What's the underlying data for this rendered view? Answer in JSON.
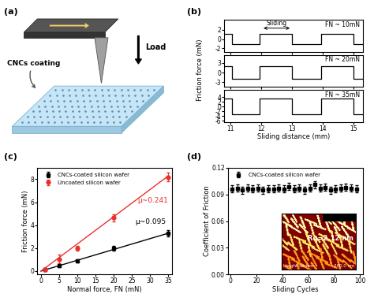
{
  "chart_data": [
    {
      "type": "diagram",
      "panel_label": "(a)",
      "load_label": "Load",
      "coating_label": "CNCs coating"
    },
    {
      "type": "line",
      "panel_label": "(b)",
      "x_label": "Sliding distance (mm)",
      "y_label": "Friction force (mN)",
      "sliding_label": "Sliding",
      "sliding_range": [
        12,
        13
      ],
      "x": [
        10.8,
        11.05,
        11.05,
        11.95,
        11.95,
        13.0,
        13.0,
        13.95,
        13.95,
        15.0,
        15.0,
        15.3
      ],
      "xlim": [
        10.8,
        15.3
      ],
      "xticks": [
        11,
        12,
        13,
        14,
        15
      ],
      "subplots": [
        {
          "annotation": "FN ~ 10mN",
          "ylim": [
            -2.8,
            4.2
          ],
          "yticks": [
            -2,
            0,
            2
          ],
          "series": [
            {
              "color": "#000000",
              "values": [
                1.2,
                1.2,
                -1.1,
                -1.1,
                1.2,
                1.2,
                -1.1,
                -1.1,
                1.2,
                1.2,
                -1.1,
                -1.1
              ]
            }
          ]
        },
        {
          "annotation": "FN ~ 20mN",
          "ylim": [
            -4.5,
            5.5
          ],
          "yticks": [
            -3,
            0,
            3
          ],
          "series": [
            {
              "color": "#000000",
              "values": [
                2.0,
                2.0,
                -1.9,
                -1.9,
                2.0,
                2.0,
                -1.9,
                -1.9,
                2.0,
                2.0,
                -1.9,
                -1.9
              ]
            }
          ]
        },
        {
          "annotation": "FN ~ 35mN",
          "ylim": [
            -6.5,
            7
          ],
          "yticks": [
            -6,
            -4,
            -2,
            0,
            2,
            4
          ],
          "series": [
            {
              "color": "#000000",
              "values": [
                3.3,
                3.3,
                -3.4,
                -3.4,
                3.3,
                3.3,
                -3.4,
                -3.4,
                3.3,
                3.3,
                -3.4,
                -3.4
              ]
            }
          ]
        }
      ]
    },
    {
      "type": "scatter",
      "panel_label": "(c)",
      "x_label": "Normal force, FN (mN)",
      "y_label": "Friction force (mN)",
      "xlim": [
        -1,
        36
      ],
      "xticks": [
        0,
        5,
        10,
        15,
        20,
        25,
        30,
        35
      ],
      "ylim": [
        -0.3,
        9
      ],
      "yticks": [
        0,
        2,
        4,
        6,
        8
      ],
      "legend": "upper left",
      "series": [
        {
          "name": "CNCs-coated silicon wafer",
          "color": "#000000",
          "marker": "square",
          "x": [
            1,
            5,
            10,
            20,
            35
          ],
          "values": [
            0.1,
            0.45,
            0.9,
            2.0,
            3.3
          ],
          "errors": [
            0.1,
            0.1,
            0.15,
            0.2,
            0.25
          ],
          "fit": {
            "x": [
              0,
              35
            ],
            "values": [
              0,
              3.3
            ],
            "label": "μ~0.095"
          }
        },
        {
          "name": "Uncoated silicon wafer",
          "color": "#e8312a",
          "marker": "circle",
          "x": [
            1,
            5,
            10,
            20,
            35
          ],
          "values": [
            0.15,
            1.05,
            2.0,
            4.65,
            8.2
          ],
          "errors": [
            0.1,
            0.4,
            0.2,
            0.3,
            0.35
          ],
          "fit": {
            "x": [
              0,
              35
            ],
            "values": [
              0,
              8.3
            ],
            "label": "μ~0.241"
          }
        }
      ]
    },
    {
      "type": "scatter",
      "panel_label": "(d)",
      "x_label": "Sliding Cycles",
      "y_label": "Coefficient of Friction",
      "xlim": [
        -2,
        102
      ],
      "xticks": [
        0,
        20,
        40,
        60,
        80,
        100
      ],
      "ylim": [
        0,
        0.12
      ],
      "yticks": [
        {
          "value": 0,
          "label": "0.00"
        },
        {
          "value": 0.03,
          "label": "0.03"
        },
        {
          "value": 0.06,
          "label": "0.06"
        },
        {
          "value": 0.09,
          "label": "0.09"
        },
        {
          "value": 0.12,
          "label": "0.12"
        }
      ],
      "legend": "upper left",
      "series": [
        {
          "name": "CNCs-coated silicon wafer",
          "color": "#000000",
          "marker": "square",
          "x": [
            1,
            5,
            9,
            13,
            17,
            21,
            25,
            29,
            33,
            37,
            41,
            45,
            49,
            53,
            57,
            61,
            65,
            69,
            73,
            77,
            81,
            85,
            89,
            93,
            97
          ],
          "values": [
            0.096,
            0.097,
            0.095,
            0.097,
            0.096,
            0.097,
            0.095,
            0.096,
            0.096,
            0.097,
            0.096,
            0.099,
            0.096,
            0.097,
            0.095,
            0.097,
            0.101,
            0.097,
            0.098,
            0.095,
            0.096,
            0.097,
            0.098,
            0.097,
            0.096
          ],
          "errors": [
            0.004,
            0.004,
            0.004,
            0.004,
            0.004,
            0.004,
            0.004,
            0.004,
            0.004,
            0.004,
            0.004,
            0.004,
            0.004,
            0.004,
            0.004,
            0.004,
            0.004,
            0.004,
            0.004,
            0.004,
            0.004,
            0.004,
            0.004,
            0.004,
            0.004
          ]
        }
      ],
      "inset": {
        "roughness_label": "Rq=2.12 nm",
        "sensor_label": "Height Sensor",
        "scale_label": "300.0 nm"
      }
    }
  ]
}
